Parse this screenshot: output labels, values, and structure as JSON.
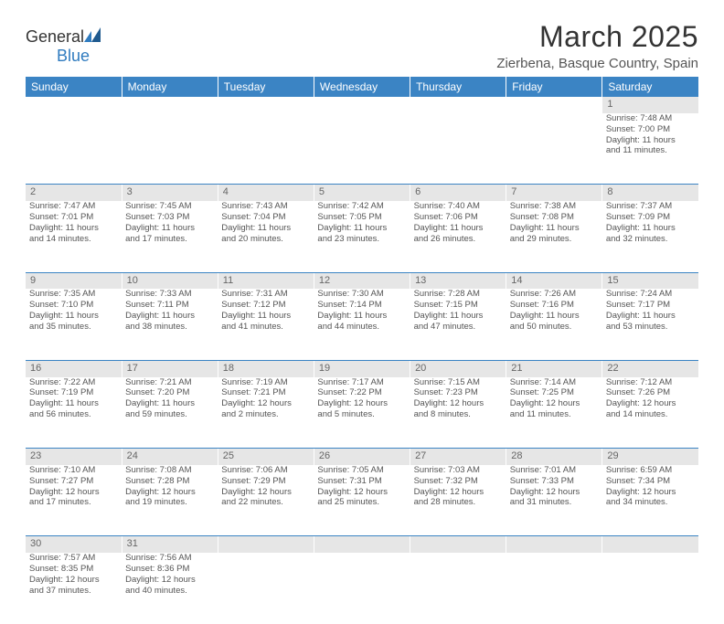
{
  "logo": {
    "text1": "General",
    "text2": "Blue"
  },
  "title": "March 2025",
  "location": "Zierbena, Basque Country, Spain",
  "colors": {
    "header_bg": "#3b84c4",
    "header_fg": "#ffffff",
    "daynum_bg": "#e6e6e6",
    "daynum_fg": "#666666",
    "border": "#3b84c4",
    "text": "#555555",
    "logo_blue": "#2f7bbf"
  },
  "layout": {
    "columns": 7,
    "font_family": "Arial",
    "cell_font_size_pt": 7,
    "header_font_size_pt": 9
  },
  "days": [
    "Sunday",
    "Monday",
    "Tuesday",
    "Wednesday",
    "Thursday",
    "Friday",
    "Saturday"
  ],
  "weeks": [
    [
      null,
      null,
      null,
      null,
      null,
      null,
      {
        "n": "1",
        "sunrise": "Sunrise: 7:48 AM",
        "sunset": "Sunset: 7:00 PM",
        "d1": "Daylight: 11 hours",
        "d2": "and 11 minutes."
      }
    ],
    [
      {
        "n": "2",
        "sunrise": "Sunrise: 7:47 AM",
        "sunset": "Sunset: 7:01 PM",
        "d1": "Daylight: 11 hours",
        "d2": "and 14 minutes."
      },
      {
        "n": "3",
        "sunrise": "Sunrise: 7:45 AM",
        "sunset": "Sunset: 7:03 PM",
        "d1": "Daylight: 11 hours",
        "d2": "and 17 minutes."
      },
      {
        "n": "4",
        "sunrise": "Sunrise: 7:43 AM",
        "sunset": "Sunset: 7:04 PM",
        "d1": "Daylight: 11 hours",
        "d2": "and 20 minutes."
      },
      {
        "n": "5",
        "sunrise": "Sunrise: 7:42 AM",
        "sunset": "Sunset: 7:05 PM",
        "d1": "Daylight: 11 hours",
        "d2": "and 23 minutes."
      },
      {
        "n": "6",
        "sunrise": "Sunrise: 7:40 AM",
        "sunset": "Sunset: 7:06 PM",
        "d1": "Daylight: 11 hours",
        "d2": "and 26 minutes."
      },
      {
        "n": "7",
        "sunrise": "Sunrise: 7:38 AM",
        "sunset": "Sunset: 7:08 PM",
        "d1": "Daylight: 11 hours",
        "d2": "and 29 minutes."
      },
      {
        "n": "8",
        "sunrise": "Sunrise: 7:37 AM",
        "sunset": "Sunset: 7:09 PM",
        "d1": "Daylight: 11 hours",
        "d2": "and 32 minutes."
      }
    ],
    [
      {
        "n": "9",
        "sunrise": "Sunrise: 7:35 AM",
        "sunset": "Sunset: 7:10 PM",
        "d1": "Daylight: 11 hours",
        "d2": "and 35 minutes."
      },
      {
        "n": "10",
        "sunrise": "Sunrise: 7:33 AM",
        "sunset": "Sunset: 7:11 PM",
        "d1": "Daylight: 11 hours",
        "d2": "and 38 minutes."
      },
      {
        "n": "11",
        "sunrise": "Sunrise: 7:31 AM",
        "sunset": "Sunset: 7:12 PM",
        "d1": "Daylight: 11 hours",
        "d2": "and 41 minutes."
      },
      {
        "n": "12",
        "sunrise": "Sunrise: 7:30 AM",
        "sunset": "Sunset: 7:14 PM",
        "d1": "Daylight: 11 hours",
        "d2": "and 44 minutes."
      },
      {
        "n": "13",
        "sunrise": "Sunrise: 7:28 AM",
        "sunset": "Sunset: 7:15 PM",
        "d1": "Daylight: 11 hours",
        "d2": "and 47 minutes."
      },
      {
        "n": "14",
        "sunrise": "Sunrise: 7:26 AM",
        "sunset": "Sunset: 7:16 PM",
        "d1": "Daylight: 11 hours",
        "d2": "and 50 minutes."
      },
      {
        "n": "15",
        "sunrise": "Sunrise: 7:24 AM",
        "sunset": "Sunset: 7:17 PM",
        "d1": "Daylight: 11 hours",
        "d2": "and 53 minutes."
      }
    ],
    [
      {
        "n": "16",
        "sunrise": "Sunrise: 7:22 AM",
        "sunset": "Sunset: 7:19 PM",
        "d1": "Daylight: 11 hours",
        "d2": "and 56 minutes."
      },
      {
        "n": "17",
        "sunrise": "Sunrise: 7:21 AM",
        "sunset": "Sunset: 7:20 PM",
        "d1": "Daylight: 11 hours",
        "d2": "and 59 minutes."
      },
      {
        "n": "18",
        "sunrise": "Sunrise: 7:19 AM",
        "sunset": "Sunset: 7:21 PM",
        "d1": "Daylight: 12 hours",
        "d2": "and 2 minutes."
      },
      {
        "n": "19",
        "sunrise": "Sunrise: 7:17 AM",
        "sunset": "Sunset: 7:22 PM",
        "d1": "Daylight: 12 hours",
        "d2": "and 5 minutes."
      },
      {
        "n": "20",
        "sunrise": "Sunrise: 7:15 AM",
        "sunset": "Sunset: 7:23 PM",
        "d1": "Daylight: 12 hours",
        "d2": "and 8 minutes."
      },
      {
        "n": "21",
        "sunrise": "Sunrise: 7:14 AM",
        "sunset": "Sunset: 7:25 PM",
        "d1": "Daylight: 12 hours",
        "d2": "and 11 minutes."
      },
      {
        "n": "22",
        "sunrise": "Sunrise: 7:12 AM",
        "sunset": "Sunset: 7:26 PM",
        "d1": "Daylight: 12 hours",
        "d2": "and 14 minutes."
      }
    ],
    [
      {
        "n": "23",
        "sunrise": "Sunrise: 7:10 AM",
        "sunset": "Sunset: 7:27 PM",
        "d1": "Daylight: 12 hours",
        "d2": "and 17 minutes."
      },
      {
        "n": "24",
        "sunrise": "Sunrise: 7:08 AM",
        "sunset": "Sunset: 7:28 PM",
        "d1": "Daylight: 12 hours",
        "d2": "and 19 minutes."
      },
      {
        "n": "25",
        "sunrise": "Sunrise: 7:06 AM",
        "sunset": "Sunset: 7:29 PM",
        "d1": "Daylight: 12 hours",
        "d2": "and 22 minutes."
      },
      {
        "n": "26",
        "sunrise": "Sunrise: 7:05 AM",
        "sunset": "Sunset: 7:31 PM",
        "d1": "Daylight: 12 hours",
        "d2": "and 25 minutes."
      },
      {
        "n": "27",
        "sunrise": "Sunrise: 7:03 AM",
        "sunset": "Sunset: 7:32 PM",
        "d1": "Daylight: 12 hours",
        "d2": "and 28 minutes."
      },
      {
        "n": "28",
        "sunrise": "Sunrise: 7:01 AM",
        "sunset": "Sunset: 7:33 PM",
        "d1": "Daylight: 12 hours",
        "d2": "and 31 minutes."
      },
      {
        "n": "29",
        "sunrise": "Sunrise: 6:59 AM",
        "sunset": "Sunset: 7:34 PM",
        "d1": "Daylight: 12 hours",
        "d2": "and 34 minutes."
      }
    ],
    [
      {
        "n": "30",
        "sunrise": "Sunrise: 7:57 AM",
        "sunset": "Sunset: 8:35 PM",
        "d1": "Daylight: 12 hours",
        "d2": "and 37 minutes."
      },
      {
        "n": "31",
        "sunrise": "Sunrise: 7:56 AM",
        "sunset": "Sunset: 8:36 PM",
        "d1": "Daylight: 12 hours",
        "d2": "and 40 minutes."
      },
      null,
      null,
      null,
      null,
      null
    ]
  ]
}
